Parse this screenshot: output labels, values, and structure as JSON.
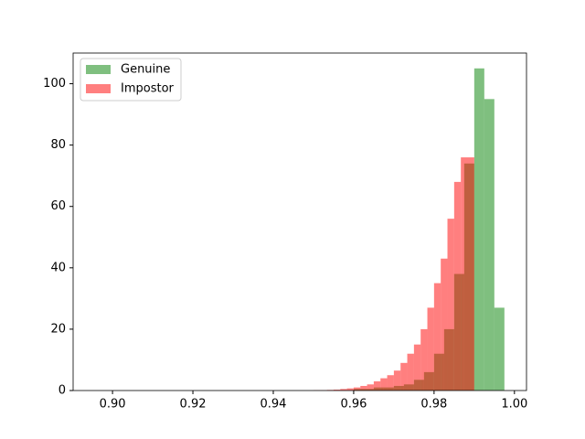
{
  "chart_data": {
    "type": "histogram",
    "xlim": [
      0.8902,
      1.003
    ],
    "ylim": [
      0,
      110
    ],
    "xticks": [
      {
        "value": 0.9,
        "label": "0.90"
      },
      {
        "value": 0.92,
        "label": "0.92"
      },
      {
        "value": 0.94,
        "label": "0.94"
      },
      {
        "value": 0.96,
        "label": "0.96"
      },
      {
        "value": 0.98,
        "label": "0.98"
      },
      {
        "value": 1.0,
        "label": "1.00"
      }
    ],
    "yticks": [
      0,
      20,
      40,
      60,
      80,
      100
    ],
    "legend": "upper left",
    "series": [
      {
        "name": "Genuine",
        "color": "green",
        "alpha": 0.5,
        "bins": [
          0.96,
          0.9625,
          0.965,
          0.9675,
          0.97,
          0.9725,
          0.975,
          0.9775,
          0.98,
          0.9825,
          0.985,
          0.9875,
          0.99,
          0.9925,
          0.995,
          0.9975
        ],
        "values": [
          0.5,
          0.5,
          1,
          1,
          1.5,
          2,
          3.5,
          6,
          12,
          20,
          38,
          74,
          105,
          95,
          27
        ]
      },
      {
        "name": "Impostor",
        "color": "red",
        "alpha": 0.5,
        "bins": [
          0.95,
          0.951667,
          0.953333,
          0.955,
          0.956667,
          0.958333,
          0.96,
          0.961667,
          0.963333,
          0.965,
          0.966667,
          0.968333,
          0.97,
          0.971667,
          0.973333,
          0.975,
          0.976667,
          0.978333,
          0.98,
          0.981667,
          0.983333,
          0.985,
          0.986667,
          0.988333,
          0.99
        ],
        "values": [
          0.1,
          0.1,
          0.2,
          0.3,
          0.5,
          0.7,
          1,
          1.5,
          2,
          3,
          4,
          5,
          6.5,
          9,
          12,
          15,
          20,
          27,
          35,
          43,
          56,
          68,
          76,
          76
        ]
      }
    ]
  }
}
